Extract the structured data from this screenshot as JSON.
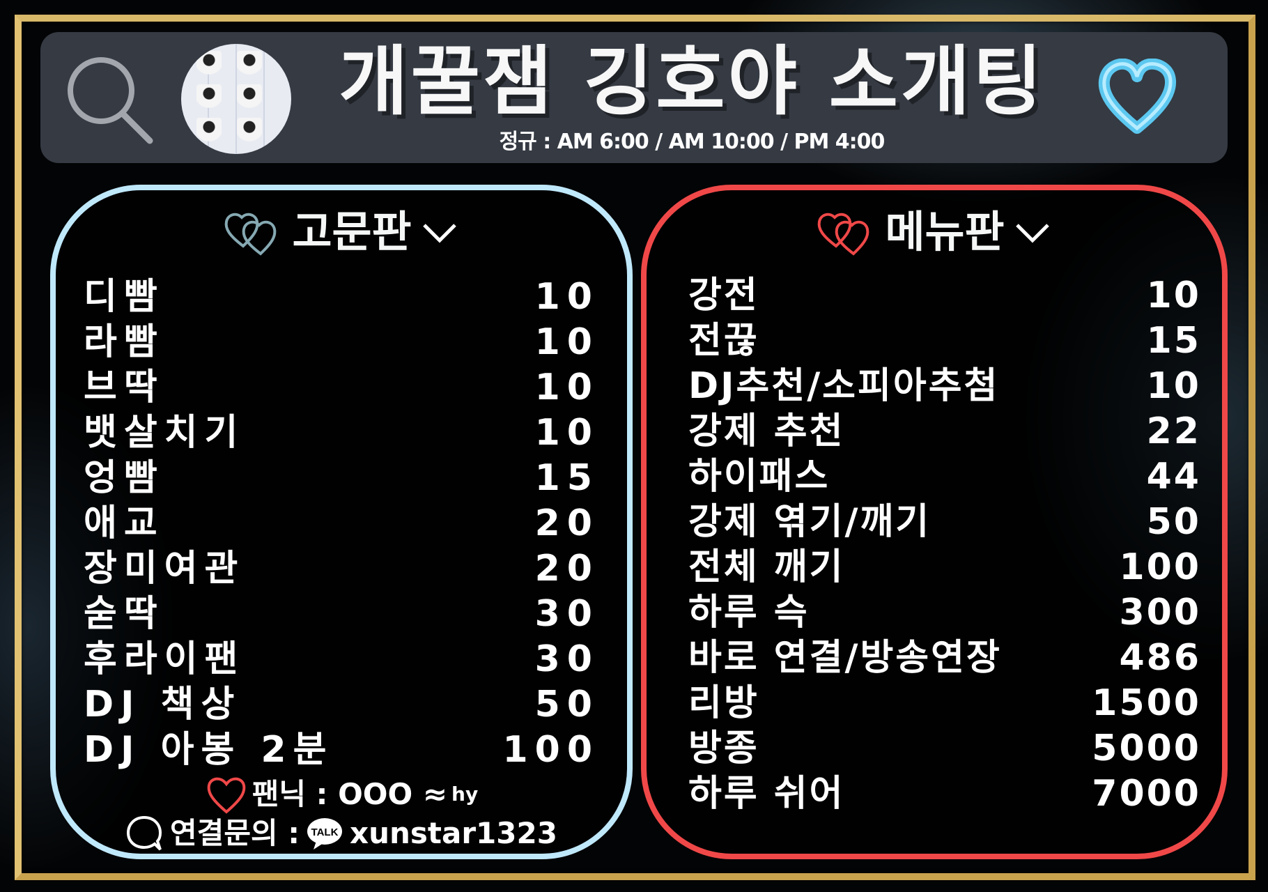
{
  "header": {
    "title": "개꿀잼 깅호야 소개팅",
    "schedule": "정규 : AM 6:00 / AM 10:00 / PM 4:00",
    "search_icon": "search-icon",
    "heart_icon": "heart-icon",
    "heart_color": "#5cc8f0"
  },
  "left_panel": {
    "title": "고문판",
    "accent": "#bfe8fb",
    "items": [
      {
        "name": "디빰",
        "value": "10"
      },
      {
        "name": "라빰",
        "value": "10"
      },
      {
        "name": "브딱",
        "value": "10"
      },
      {
        "name": "뱃살치기",
        "value": "10"
      },
      {
        "name": "엉빰",
        "value": "15"
      },
      {
        "name": "애교",
        "value": "20"
      },
      {
        "name": "장미여관",
        "value": "20"
      },
      {
        "name": "숟딱",
        "value": "30"
      },
      {
        "name": "후라이팬",
        "value": "30"
      },
      {
        "name": "DJ 책상",
        "value": "50"
      },
      {
        "name": "DJ 아봉 2분",
        "value": "100"
      }
    ],
    "fan_nick": {
      "label": "팬닉 : OOO ≈",
      "suffix": "hy"
    },
    "contact": {
      "label": "연결문의 :",
      "talk_badge": "TALK",
      "id": "xunstar1323"
    }
  },
  "right_panel": {
    "title": "메뉴판",
    "accent": "#f04848",
    "items": [
      {
        "name": "강전",
        "value": "10"
      },
      {
        "name": "전끊",
        "value": "15"
      },
      {
        "name": "DJ추천/소피아추첨",
        "value": "10"
      },
      {
        "name": "강제 추천",
        "value": "22"
      },
      {
        "name": "하이패스",
        "value": "44"
      },
      {
        "name": "강제 엮기/깨기",
        "value": "50"
      },
      {
        "name": "전체 깨기",
        "value": "100"
      },
      {
        "name": "하루 슥",
        "value": "300"
      },
      {
        "name": "바로 연결/방송연장",
        "value": "486"
      },
      {
        "name": "리방",
        "value": "1500"
      },
      {
        "name": "방종",
        "value": "5000"
      },
      {
        "name": "하루 쉬어",
        "value": "7000"
      }
    ]
  }
}
